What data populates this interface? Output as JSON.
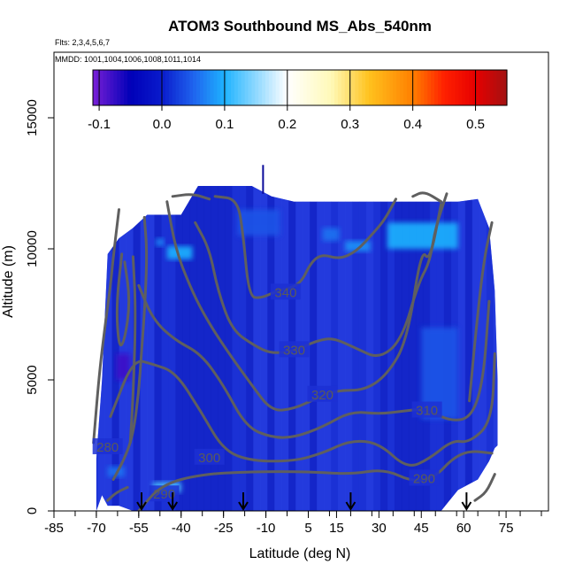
{
  "chart_data": {
    "type": "heatmap",
    "title": "ATOM3 Southbound MS_Abs_540nm",
    "subtitle_flights": "Flts: 2,3,4,5,6,7",
    "subtitle_dates": "MMDD: 1001,1004,1006,1008,1011,1014",
    "xlabel": "Latitude (deg N)",
    "ylabel": "Altitude (m)",
    "xlim": [
      -85,
      90
    ],
    "ylim": [
      0,
      17500
    ],
    "x_ticks": [
      "-85",
      "-70",
      "-55",
      "-40",
      "-25",
      "-10",
      "5",
      "15",
      "30",
      "45",
      "60",
      "75"
    ],
    "x_tick_values": [
      -85,
      -70,
      -55,
      -40,
      -25,
      -10,
      5,
      15,
      30,
      45,
      60,
      75
    ],
    "y_ticks": [
      "0",
      "5000",
      "10000",
      "15000"
    ],
    "y_tick_values": [
      0,
      5000,
      10000,
      15000
    ],
    "colorbar": {
      "range": [
        -0.11,
        0.55
      ],
      "ticks": [
        "-0.1",
        "0.0",
        "0.1",
        "0.2",
        "0.3",
        "0.4",
        "0.5"
      ],
      "tick_values": [
        -0.1,
        0.0,
        0.1,
        0.2,
        0.3,
        0.4,
        0.5
      ],
      "stops": [
        {
          "v": -0.11,
          "color": "#7a1fd6"
        },
        {
          "v": -0.05,
          "color": "#0000b8"
        },
        {
          "v": 0.0,
          "color": "#0a1bcc"
        },
        {
          "v": 0.05,
          "color": "#1f63ee"
        },
        {
          "v": 0.1,
          "color": "#1eb3ff"
        },
        {
          "v": 0.15,
          "color": "#8fd8ff"
        },
        {
          "v": 0.2,
          "color": "#ffffff"
        },
        {
          "v": 0.27,
          "color": "#fff9b8"
        },
        {
          "v": 0.33,
          "color": "#ffc21e"
        },
        {
          "v": 0.4,
          "color": "#ff7f00"
        },
        {
          "v": 0.45,
          "color": "#ff2000"
        },
        {
          "v": 0.5,
          "color": "#e60000"
        },
        {
          "v": 0.55,
          "color": "#a31212"
        }
      ]
    },
    "field_color": "#1c30d4",
    "sampled_extent": [
      [
        -70,
        0,
        2000
      ],
      [
        -68,
        600,
        5000
      ],
      [
        -66,
        200,
        9800
      ],
      [
        -62,
        200,
        10400
      ],
      [
        -57,
        0,
        10800
      ],
      [
        -52,
        0,
        11300
      ],
      [
        -45,
        0,
        11300
      ],
      [
        -40,
        0,
        11300
      ],
      [
        -34,
        0,
        12400
      ],
      [
        -15,
        0,
        12400
      ],
      [
        -8,
        0,
        12000
      ],
      [
        0,
        0,
        11800
      ],
      [
        10,
        0,
        11800
      ],
      [
        20,
        0,
        11800
      ],
      [
        30,
        0,
        11800
      ],
      [
        40,
        0,
        11800
      ],
      [
        48,
        0,
        11800
      ],
      [
        52,
        0,
        11800
      ],
      [
        58,
        800,
        11800
      ],
      [
        65,
        1200,
        11900
      ],
      [
        69,
        1900,
        10800
      ],
      [
        71,
        2400,
        8400
      ],
      [
        72,
        2500,
        5000
      ]
    ],
    "value_patches": [
      {
        "lat": [
          -63,
          -58
        ],
        "alt": [
          5000,
          6000
        ],
        "value": -0.08
      },
      {
        "lat": [
          -45,
          -36
        ],
        "alt": [
          9600,
          10100
        ],
        "value": 0.1
      },
      {
        "lat": [
          -49,
          -46
        ],
        "alt": [
          10100,
          10400
        ],
        "value": 0.07
      },
      {
        "lat": [
          18,
          27
        ],
        "alt": [
          9900,
          10300
        ],
        "value": 0.08
      },
      {
        "lat": [
          33,
          58
        ],
        "alt": [
          10000,
          11000
        ],
        "value": 0.1
      },
      {
        "lat": [
          10,
          16
        ],
        "alt": [
          10300,
          10800
        ],
        "value": 0.06
      },
      {
        "lat": [
          -50,
          -40
        ],
        "alt": [
          700,
          1100
        ],
        "value": 0.12
      },
      {
        "lat": [
          -66,
          -60
        ],
        "alt": [
          1300,
          1700
        ],
        "value": 0.06
      },
      {
        "lat": [
          45,
          58
        ],
        "alt": [
          3500,
          7000
        ],
        "value": 0.04
      },
      {
        "lat": [
          -20,
          -5
        ],
        "alt": [
          10500,
          11500
        ],
        "value": 0.04
      }
    ],
    "isentropes": [
      {
        "label": "280",
        "label_at": [
          -66,
          2400
        ],
        "points": [
          [
            -71,
            2600
          ],
          [
            -69,
            5200
          ],
          [
            -67,
            7000
          ],
          [
            -65,
            8600
          ],
          [
            -64,
            9700
          ],
          [
            -62,
            11500
          ]
        ]
      },
      {
        "label": "290",
        "label_at": [
          -46,
          600
        ],
        "points": [
          [
            -64,
            1200
          ],
          [
            -60,
            2000
          ],
          [
            -57,
            2900
          ],
          [
            -55,
            4500
          ],
          [
            -54,
            6100
          ],
          [
            -53,
            7500
          ],
          [
            -52,
            9800
          ],
          [
            -53,
            11200
          ]
        ]
      },
      {
        "label": "290",
        "label_at": [
          46,
          1200
        ],
        "points": [
          [
            -55,
            0
          ],
          [
            -47,
            1000
          ],
          [
            -33,
            1400
          ],
          [
            -15,
            1500
          ],
          [
            5,
            1500
          ],
          [
            20,
            1400
          ],
          [
            32,
            1600
          ],
          [
            42,
            1100
          ],
          [
            50,
            1300
          ],
          [
            56,
            2000
          ],
          [
            62,
            2300
          ],
          [
            70,
            2200
          ]
        ]
      },
      {
        "label": "300",
        "label_at": [
          -30,
          2000
        ],
        "points": [
          [
            -65,
            3600
          ],
          [
            -57,
            5800
          ],
          [
            -50,
            5600
          ],
          [
            -42,
            5300
          ],
          [
            -33,
            3800
          ],
          [
            -25,
            2300
          ],
          [
            -15,
            1900
          ],
          [
            0,
            1900
          ],
          [
            10,
            2200
          ],
          [
            20,
            2700
          ],
          [
            30,
            2600
          ],
          [
            40,
            1600
          ],
          [
            48,
            2000
          ],
          [
            56,
            2700
          ],
          [
            62,
            2600
          ],
          [
            70,
            3400
          ],
          [
            71,
            6000
          ]
        ]
      },
      {
        "label": "310",
        "label_at": [
          47,
          3800
        ],
        "points": [
          [
            -55,
            8600
          ],
          [
            -50,
            7300
          ],
          [
            -42,
            6500
          ],
          [
            -33,
            6000
          ],
          [
            -25,
            4800
          ],
          [
            -17,
            3200
          ],
          [
            -8,
            2800
          ],
          [
            0,
            2800
          ],
          [
            10,
            3200
          ],
          [
            20,
            3800
          ],
          [
            30,
            3700
          ],
          [
            38,
            3800
          ],
          [
            46,
            3900
          ],
          [
            56,
            3400
          ],
          [
            63,
            3600
          ],
          [
            67,
            5000
          ],
          [
            69,
            8000
          ]
        ]
      },
      {
        "label": "320",
        "label_at": [
          10,
          4400
        ],
        "points": [
          [
            -45,
            11800
          ],
          [
            -42,
            10000
          ],
          [
            -37,
            8600
          ],
          [
            -32,
            7500
          ],
          [
            -25,
            6300
          ],
          [
            -15,
            4800
          ],
          [
            -8,
            3800
          ],
          [
            0,
            3900
          ],
          [
            8,
            4300
          ],
          [
            15,
            4600
          ],
          [
            25,
            4600
          ],
          [
            33,
            5200
          ],
          [
            40,
            6500
          ],
          [
            45,
            10000
          ],
          [
            48,
            9500
          ],
          [
            52,
            11700
          ]
        ]
      },
      {
        "label": "330",
        "label_at": [
          0,
          6100
        ],
        "points": [
          [
            -35,
            11000
          ],
          [
            -30,
            10000
          ],
          [
            -27,
            8400
          ],
          [
            -22,
            6900
          ],
          [
            -14,
            6300
          ],
          [
            -8,
            6000
          ],
          [
            0,
            6100
          ],
          [
            8,
            6500
          ],
          [
            14,
            6600
          ],
          [
            22,
            6200
          ],
          [
            30,
            5800
          ],
          [
            38,
            6500
          ],
          [
            44,
            8700
          ],
          [
            48,
            9500
          ],
          [
            50,
            10800
          ],
          [
            54,
            12100
          ]
        ]
      },
      {
        "label": "340",
        "label_at": [
          -3,
          8300
        ],
        "points": [
          [
            -28,
            12000
          ],
          [
            -20,
            11900
          ],
          [
            -18,
            10500
          ],
          [
            -16,
            8200
          ],
          [
            -12,
            8100
          ],
          [
            -6,
            8400
          ],
          [
            2,
            8600
          ],
          [
            6,
            9500
          ],
          [
            10,
            9800
          ],
          [
            16,
            9600
          ],
          [
            22,
            9900
          ],
          [
            28,
            10600
          ],
          [
            32,
            11100
          ],
          [
            36,
            11900
          ]
        ]
      },
      {
        "label": "",
        "label_at": [
          0,
          0
        ],
        "points": [
          [
            -43,
            12000
          ],
          [
            -36,
            12100
          ],
          [
            -30,
            11900
          ]
        ]
      },
      {
        "label": "",
        "label_at": [
          0,
          0
        ],
        "points": [
          [
            -60,
            9500
          ],
          [
            -58,
            8000
          ],
          [
            -60,
            6500
          ],
          [
            -62,
            6200
          ],
          [
            -63,
            7800
          ],
          [
            -61,
            9800
          ]
        ]
      },
      {
        "label": "",
        "label_at": [
          0,
          0
        ],
        "points": [
          [
            -57,
            9700
          ],
          [
            -56,
            7600
          ],
          [
            -57,
            4300
          ],
          [
            -58,
            2600
          ]
        ]
      },
      {
        "label": "",
        "label_at": [
          0,
          0
        ],
        "points": [
          [
            42,
            12000
          ],
          [
            46,
            12200
          ],
          [
            52,
            11800
          ]
        ]
      },
      {
        "label": "",
        "label_at": [
          0,
          0
        ],
        "points": [
          [
            62,
            4200
          ],
          [
            64,
            6500
          ],
          [
            67,
            9500
          ],
          [
            70,
            11000
          ]
        ]
      },
      {
        "label": "",
        "label_at": [
          0,
          0
        ],
        "points": [
          [
            64,
            400
          ],
          [
            68,
            700
          ],
          [
            71,
            1400
          ]
        ]
      },
      {
        "label": "",
        "label_at": [
          0,
          0
        ],
        "points": [
          [
            -66,
            400
          ],
          [
            -63,
            700
          ],
          [
            -59,
            900
          ]
        ]
      }
    ],
    "annotations": [
      {
        "type": "arrow_down",
        "lat": -54
      },
      {
        "type": "arrow_down",
        "lat": -43
      },
      {
        "type": "arrow_down",
        "lat": -18
      },
      {
        "type": "arrow_down",
        "lat": 20
      },
      {
        "type": "arrow_down",
        "lat": 61
      },
      {
        "type": "vertical_tick",
        "lat": -11,
        "alt": [
          12100,
          13200
        ]
      }
    ]
  }
}
